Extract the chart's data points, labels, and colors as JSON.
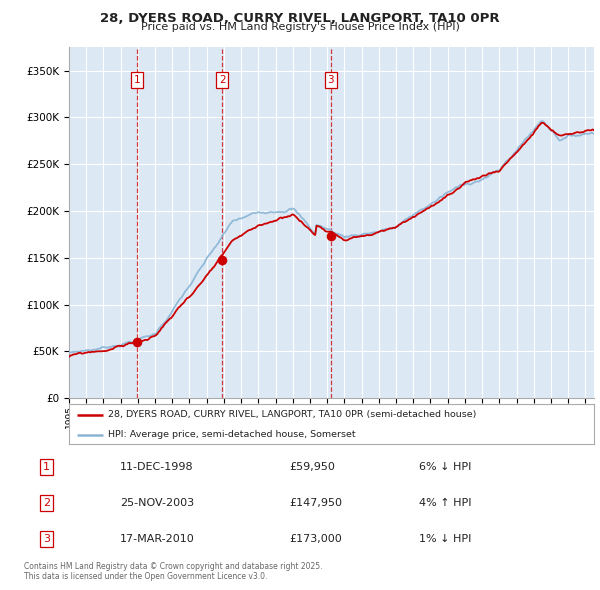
{
  "title_line1": "28, DYERS ROAD, CURRY RIVEL, LANGPORT, TA10 0PR",
  "title_line2": "Price paid vs. HM Land Registry's House Price Index (HPI)",
  "legend_line1": "28, DYERS ROAD, CURRY RIVEL, LANGPORT, TA10 0PR (semi-detached house)",
  "legend_line2": "HPI: Average price, semi-detached house, Somerset",
  "sale1_date": "11-DEC-1998",
  "sale1_price": "£59,950",
  "sale1_hpi": "6% ↓ HPI",
  "sale1_year": 1998.94,
  "sale1_value": 59950,
  "sale2_date": "25-NOV-2003",
  "sale2_price": "£147,950",
  "sale2_hpi": "4% ↑ HPI",
  "sale2_year": 2003.9,
  "sale2_value": 147950,
  "sale3_date": "17-MAR-2010",
  "sale3_price": "£173,000",
  "sale3_hpi": "1% ↓ HPI",
  "sale3_year": 2010.21,
  "sale3_value": 173000,
  "red_color": "#cc0000",
  "blue_color": "#8ab4d4",
  "plot_bg": "#dce9f5",
  "grid_color": "#ffffff",
  "footnote": "Contains HM Land Registry data © Crown copyright and database right 2025.\nThis data is licensed under the Open Government Licence v3.0.",
  "ylim_max": 375000,
  "ylim_min": 0,
  "xmin": 1995,
  "xmax": 2025.5
}
